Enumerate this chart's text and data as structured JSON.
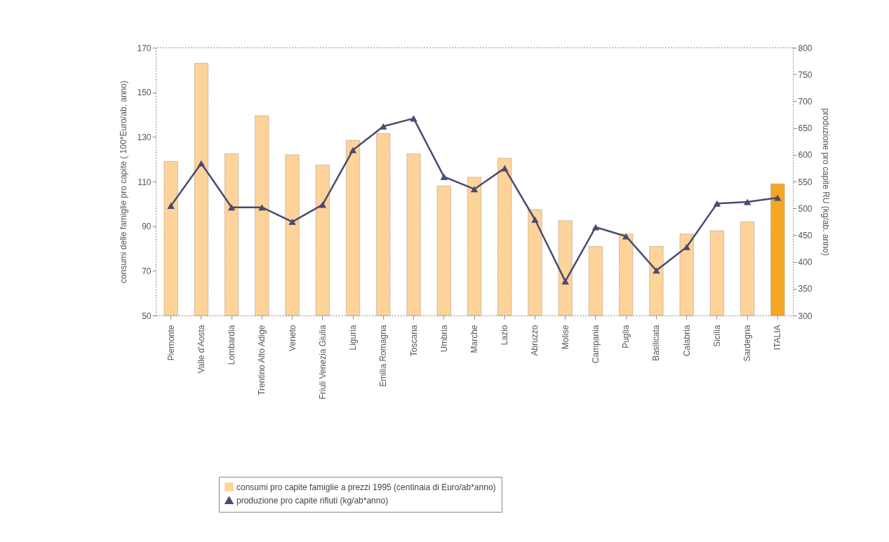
{
  "chart_data": {
    "type": "bar",
    "xlabel": null,
    "ylabel": "consumi delle famiglie pro capite ( 100*Euro/ab. anno)",
    "y2label": "produzione pro capite RU (kg/ab. anno)",
    "categories": [
      "Piemonte",
      "Valle d'Aosta",
      "Lombardia",
      "Trentino Alto Adige",
      "Veneto",
      "Friuli Venezia Giulia",
      "Liguria",
      "Emilia Romagna",
      "Toscana",
      "Umbria",
      "Marche",
      "Lazio",
      "Abruzzo",
      "Molise",
      "Campania",
      "Puglia",
      "Basilicata",
      "Calabria",
      "Sicilia",
      "Sardegna",
      "ITALIA"
    ],
    "series": [
      {
        "name": "consumi pro capite famiglie a prezzi 1995 (centinaia di Euro/ab*anno)",
        "color": "#fdd39a",
        "colors": [
          "#fdd39a",
          "#fdd39a",
          "#fdd39a",
          "#fdd39a",
          "#fdd39a",
          "#fdd39a",
          "#fdd39a",
          "#fdd39a",
          "#fdd39a",
          "#fdd39a",
          "#fdd39a",
          "#fdd39a",
          "#fdd39a",
          "#fdd39a",
          "#fdd39a",
          "#fdd39a",
          "#fdd39a",
          "#fdd39a",
          "#fdd39a",
          "#fdd39a",
          "#f5a623"
        ],
        "values": [
          119,
          163,
          122.5,
          139.5,
          122,
          117.5,
          128.5,
          131.5,
          122.5,
          108,
          112,
          120.5,
          97.5,
          92.5,
          81,
          86.5,
          81,
          86.5,
          88,
          92,
          109
        ]
      },
      {
        "name": "produzione pro capite rifiuti (kg/ab*anno)",
        "type": "line",
        "axis": "y2",
        "color": "#4b4a72",
        "marker": "triangle",
        "values": [
          505,
          584,
          502,
          502,
          475,
          507,
          609,
          653,
          668,
          559,
          536,
          575,
          479,
          364,
          465,
          448,
          384,
          428,
          509,
          512,
          520
        ]
      }
    ],
    "ylim": [
      50,
      170
    ],
    "yticks": [
      50,
      70,
      90,
      110,
      130,
      150,
      170
    ],
    "y2lim": [
      300,
      800
    ],
    "y2ticks": [
      300,
      350,
      400,
      450,
      500,
      550,
      600,
      650,
      700,
      750,
      800
    ],
    "grid": false,
    "legend": "bottom"
  }
}
